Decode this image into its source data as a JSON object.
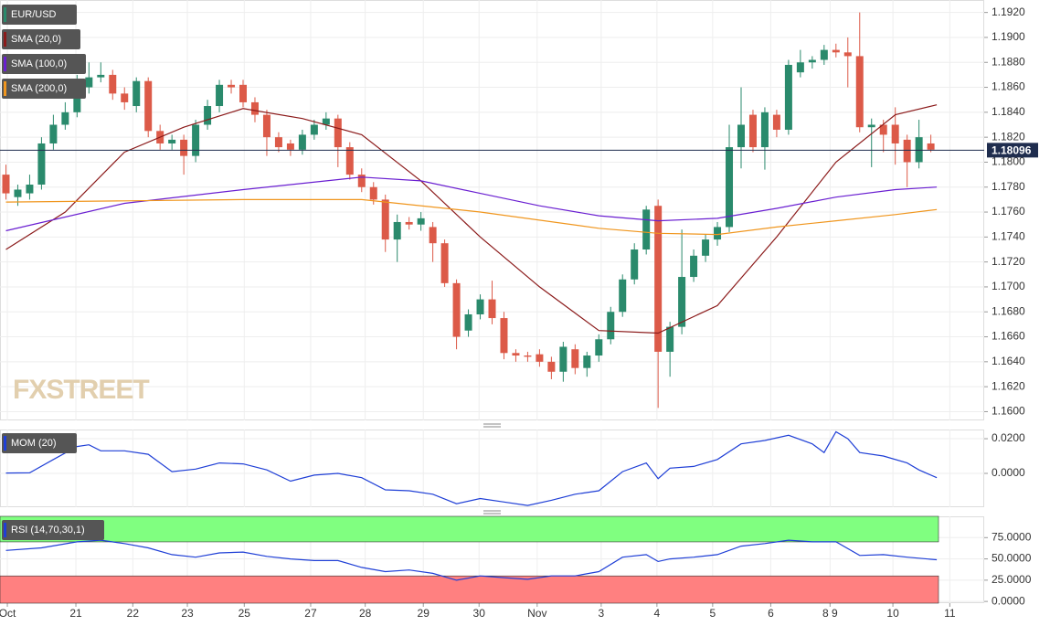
{
  "chart_data": [
    {
      "type": "candlestick",
      "label": "EUR/USD",
      "up_color": "#2a8a6c",
      "down_color": "#dc5a48",
      "label_color": "#2a8a6c",
      "xlim": [
        -0.5,
        82.5
      ],
      "ylim": [
        1.1593,
        1.193
      ],
      "yticks": [
        {
          "value": 1.16,
          "label": "1.1600"
        },
        {
          "value": 1.162,
          "label": "1.1620"
        },
        {
          "value": 1.164,
          "label": "1.1640"
        },
        {
          "value": 1.166,
          "label": "1.1660"
        },
        {
          "value": 1.168,
          "label": "1.1680"
        },
        {
          "value": 1.17,
          "label": "1.1700"
        },
        {
          "value": 1.172,
          "label": "1.1720"
        },
        {
          "value": 1.174,
          "label": "1.1740"
        },
        {
          "value": 1.176,
          "label": "1.1760"
        },
        {
          "value": 1.178,
          "label": "1.1780"
        },
        {
          "value": 1.18,
          "label": "1.1800"
        },
        {
          "value": 1.182,
          "label": "1.1820"
        },
        {
          "value": 1.184,
          "label": "1.1840"
        },
        {
          "value": 1.186,
          "label": "1.1860"
        },
        {
          "value": 1.188,
          "label": "1.1880"
        },
        {
          "value": 1.19,
          "label": "1.1900"
        },
        {
          "value": 1.192,
          "label": "1.1920"
        }
      ],
      "last_price": 1.18096,
      "last_price_color": "#1f2d4e",
      "watermark": "FXSTREET",
      "x": [
        0,
        1,
        2,
        3,
        4,
        5,
        6,
        7,
        8,
        9,
        10,
        11,
        12,
        13,
        14,
        15,
        16,
        17,
        18,
        19,
        20,
        21,
        22,
        23,
        24,
        25,
        26,
        27,
        28,
        29,
        30,
        31,
        32,
        33,
        34,
        35,
        36,
        37,
        38,
        39,
        40,
        41,
        42,
        43,
        44,
        45,
        46,
        47,
        48,
        49,
        50,
        51,
        52,
        53,
        54,
        55,
        56,
        57,
        58,
        59,
        60,
        61,
        62,
        63,
        64,
        65,
        66,
        67,
        68,
        69,
        70,
        71,
        72,
        73,
        74,
        75,
        76,
        77,
        78
      ],
      "open": [
        1.179,
        1.1772,
        1.1775,
        1.1782,
        1.1815,
        1.183,
        1.184,
        1.186,
        1.1868,
        1.187,
        1.1855,
        1.1845,
        1.1865,
        1.1825,
        1.1815,
        1.1818,
        1.1805,
        1.183,
        1.1845,
        1.1862,
        1.1862,
        1.1848,
        1.1838,
        1.182,
        1.1815,
        1.181,
        1.1822,
        1.183,
        1.1835,
        1.1812,
        1.179,
        1.178,
        1.177,
        1.1738,
        1.1752,
        1.175,
        1.1748,
        1.1735,
        1.1703,
        1.1665,
        1.1678,
        1.169,
        1.1675,
        1.1647,
        1.1645,
        1.1646,
        1.164,
        1.1632,
        1.165,
        1.1635,
        1.1645,
        1.1658,
        1.168,
        1.1706,
        1.173,
        1.1765,
        1.1648,
        1.1668,
        1.1708,
        1.1725,
        1.1738,
        1.1748,
        1.1812,
        1.1838,
        1.1812,
        1.1838,
        1.1826,
        1.1872,
        1.188,
        1.1882,
        1.189,
        1.1888,
        1.1885,
        1.1828,
        1.183,
        1.183,
        1.1818,
        1.18,
        1.1815
      ],
      "high": [
        1.1798,
        1.1782,
        1.179,
        1.182,
        1.1838,
        1.1848,
        1.187,
        1.188,
        1.188,
        1.1874,
        1.186,
        1.1868,
        1.1868,
        1.183,
        1.1822,
        1.1822,
        1.1834,
        1.185,
        1.1866,
        1.1866,
        1.1866,
        1.1852,
        1.1842,
        1.1824,
        1.1818,
        1.1826,
        1.1834,
        1.184,
        1.1838,
        1.1816,
        1.1795,
        1.1784,
        1.1774,
        1.1758,
        1.1756,
        1.176,
        1.1752,
        1.1738,
        1.1706,
        1.1682,
        1.1694,
        1.1705,
        1.168,
        1.165,
        1.1648,
        1.165,
        1.1644,
        1.1656,
        1.1654,
        1.1648,
        1.1662,
        1.1684,
        1.171,
        1.1735,
        1.1765,
        1.177,
        1.1672,
        1.1746,
        1.173,
        1.1742,
        1.1752,
        1.183,
        1.186,
        1.1842,
        1.1844,
        1.1842,
        1.1882,
        1.189,
        1.1885,
        1.1894,
        1.1895,
        1.19,
        1.192,
        1.1835,
        1.1834,
        1.1844,
        1.1822,
        1.1834,
        1.1822
      ],
      "low": [
        1.177,
        1.1765,
        1.177,
        1.1778,
        1.181,
        1.1826,
        1.1836,
        1.1855,
        1.1864,
        1.185,
        1.1842,
        1.184,
        1.182,
        1.181,
        1.181,
        1.179,
        1.18,
        1.1826,
        1.184,
        1.1855,
        1.1844,
        1.1832,
        1.1805,
        1.1808,
        1.1805,
        1.1806,
        1.1818,
        1.1826,
        1.1796,
        1.1786,
        1.1776,
        1.1766,
        1.1728,
        1.172,
        1.1746,
        1.1745,
        1.172,
        1.17,
        1.165,
        1.166,
        1.1674,
        1.167,
        1.1642,
        1.164,
        1.164,
        1.1636,
        1.1626,
        1.1624,
        1.163,
        1.1628,
        1.164,
        1.1654,
        1.1676,
        1.1702,
        1.1726,
        1.1603,
        1.1628,
        1.1662,
        1.1704,
        1.172,
        1.1733,
        1.1744,
        1.1795,
        1.1808,
        1.1794,
        1.182,
        1.1822,
        1.1868,
        1.1875,
        1.1878,
        1.1884,
        1.186,
        1.1824,
        1.1796,
        1.1808,
        1.1798,
        1.178,
        1.1795,
        1.1808
      ],
      "close": [
        1.1775,
        1.1778,
        1.1782,
        1.1815,
        1.183,
        1.184,
        1.186,
        1.1868,
        1.187,
        1.1855,
        1.1848,
        1.1865,
        1.1825,
        1.1815,
        1.1818,
        1.1805,
        1.183,
        1.1845,
        1.1862,
        1.186,
        1.1848,
        1.1838,
        1.182,
        1.1812,
        1.181,
        1.1822,
        1.183,
        1.1835,
        1.1812,
        1.179,
        1.178,
        1.177,
        1.1738,
        1.1752,
        1.175,
        1.1755,
        1.1735,
        1.1703,
        1.166,
        1.1678,
        1.169,
        1.1675,
        1.1647,
        1.1645,
        1.1644,
        1.164,
        1.1632,
        1.1652,
        1.1635,
        1.1645,
        1.1658,
        1.168,
        1.1706,
        1.173,
        1.1762,
        1.1648,
        1.1668,
        1.1708,
        1.1725,
        1.1738,
        1.1748,
        1.1812,
        1.183,
        1.1812,
        1.184,
        1.1826,
        1.1878,
        1.188,
        1.1882,
        1.189,
        1.1888,
        1.1885,
        1.1828,
        1.183,
        1.1822,
        1.1815,
        1.18,
        1.182,
        1.181
      ],
      "series": [
        {
          "name": "SMA (20,0)",
          "color": "#8b1a1a",
          "x": [
            0,
            5,
            10,
            15,
            20,
            25,
            30,
            35,
            40,
            45,
            50,
            55,
            60,
            65,
            70,
            75,
            78.5
          ],
          "values": [
            1.173,
            1.176,
            1.1808,
            1.1828,
            1.1843,
            1.1835,
            1.1822,
            1.1785,
            1.174,
            1.17,
            1.1665,
            1.1663,
            1.1685,
            1.174,
            1.18,
            1.1838,
            1.1846
          ]
        },
        {
          "name": "SMA (100,0)",
          "color": "#6a1fd1",
          "x": [
            0,
            10,
            20,
            30,
            35,
            40,
            45,
            50,
            55,
            60,
            65,
            70,
            75,
            78.5
          ],
          "values": [
            1.1745,
            1.1767,
            1.1778,
            1.1788,
            1.1785,
            1.1775,
            1.1765,
            1.1757,
            1.1753,
            1.1755,
            1.1763,
            1.1772,
            1.1778,
            1.178
          ]
        },
        {
          "name": "SMA (200,0)",
          "color": "#f0961e",
          "x": [
            0,
            10,
            20,
            30,
            40,
            50,
            55,
            60,
            65,
            70,
            75,
            78.5
          ],
          "values": [
            1.1768,
            1.1769,
            1.177,
            1.177,
            1.176,
            1.1747,
            1.1743,
            1.1742,
            1.1748,
            1.1753,
            1.1758,
            1.1762
          ]
        }
      ]
    },
    {
      "type": "line",
      "xlim": [
        -0.5,
        82.5
      ],
      "ylim": [
        -0.0195,
        0.0253
      ],
      "yticks": [
        {
          "value": 0,
          "label": "0.0000"
        },
        {
          "value": 0.02,
          "label": "0.0200"
        }
      ],
      "series": [
        {
          "name": "MOM (20)",
          "color": "#1f3fd6",
          "x": [
            0,
            2,
            4,
            6,
            7,
            8,
            10,
            12,
            14,
            16,
            18,
            20,
            22,
            24,
            26,
            28,
            30,
            32,
            34,
            36,
            38,
            40,
            42,
            44,
            46,
            48,
            50,
            52,
            54,
            55,
            56,
            58,
            60,
            62,
            64,
            66,
            68,
            69,
            70,
            71,
            72,
            74,
            76,
            77,
            78.5
          ],
          "values": [
            0.0002,
            0.0003,
            0.008,
            0.0155,
            0.0165,
            0.013,
            0.013,
            0.011,
            0.001,
            0.0025,
            0.006,
            0.0055,
            0.002,
            -0.0045,
            -0.001,
            0,
            -0.0025,
            -0.0095,
            -0.01,
            -0.012,
            -0.0175,
            -0.0145,
            -0.0165,
            -0.0185,
            -0.0155,
            -0.012,
            -0.01,
            0.001,
            0.006,
            -0.003,
            0.003,
            0.004,
            0.008,
            0.017,
            0.019,
            0.022,
            0.017,
            0.012,
            0.024,
            0.02,
            0.012,
            0.01,
            0.006,
            0.002,
            -0.0025
          ]
        }
      ]
    },
    {
      "type": "line",
      "xlim": [
        -0.5,
        82.5
      ],
      "ylim": [
        -2,
        100
      ],
      "overbought": 70,
      "oversold": 30,
      "overbought_color": "#80ff80",
      "oversold_color": "#ff8080",
      "yticks": [
        {
          "value": 0,
          "label": "0.0000"
        },
        {
          "value": 25,
          "label": "25.0000"
        },
        {
          "value": 50,
          "label": "50.0000"
        },
        {
          "value": 75,
          "label": "75.0000"
        }
      ],
      "xticks": [
        {
          "value": 0.12,
          "label": "Oct"
        },
        {
          "value": 5.9,
          "label": "21"
        },
        {
          "value": 10.7,
          "label": "22"
        },
        {
          "value": 15.3,
          "label": "23"
        },
        {
          "value": 20.1,
          "label": "25"
        },
        {
          "value": 25.7,
          "label": "27"
        },
        {
          "value": 30.3,
          "label": "28"
        },
        {
          "value": 35.2,
          "label": "29"
        },
        {
          "value": 39.9,
          "label": "30"
        },
        {
          "value": 44.8,
          "label": "Nov"
        },
        {
          "value": 50.2,
          "label": "3"
        },
        {
          "value": 54.9,
          "label": "4"
        },
        {
          "value": 59.6,
          "label": "5"
        },
        {
          "value": 64.5,
          "label": "6"
        },
        {
          "value": 69.5,
          "label": "8 9"
        },
        {
          "value": 74.8,
          "label": "10"
        },
        {
          "value": 79.6,
          "label": "11"
        }
      ],
      "series": [
        {
          "name": "RSI (14,70,30,1)",
          "color": "#1f3fd6",
          "x": [
            0,
            3,
            6,
            8,
            10,
            12,
            14,
            16,
            18,
            20,
            22,
            24,
            26,
            28,
            30,
            32,
            34,
            36,
            38,
            40,
            42,
            44,
            46,
            48,
            50,
            52,
            54,
            55,
            56,
            58,
            60,
            62,
            64,
            66,
            68,
            70,
            72,
            74,
            76,
            78.5
          ],
          "values": [
            60,
            63,
            70,
            72,
            68,
            63,
            55,
            52,
            57,
            58,
            53,
            50,
            48,
            48,
            40,
            35,
            37,
            33,
            25,
            30,
            28,
            26,
            30,
            30,
            35,
            52,
            55,
            47,
            50,
            52,
            55,
            65,
            68,
            72,
            70,
            70,
            54,
            55,
            52,
            49
          ]
        }
      ]
    }
  ]
}
